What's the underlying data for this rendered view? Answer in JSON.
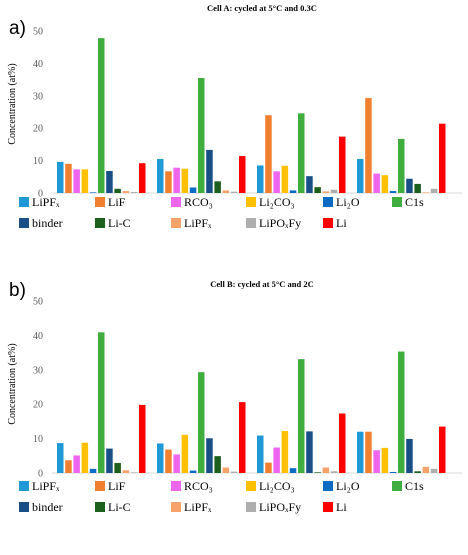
{
  "chart_data": [
    {
      "type": "bar",
      "panel_label": "a)",
      "title": "Cell A: cycled at 5°C and 0.3C",
      "ylabel": "Concentration (at%)",
      "ylim": [
        0,
        50
      ],
      "yticks": [
        0,
        10,
        20,
        30,
        40,
        50
      ],
      "grid": false,
      "legend_position": "bottom",
      "groups": 4,
      "series": [
        {
          "name": "LiPFₓ",
          "color": "#1f9ad6",
          "values": [
            9.6,
            10.5,
            8.5,
            10.5
          ]
        },
        {
          "name": "LiF",
          "color": "#f07f2f",
          "values": [
            9.0,
            6.7,
            24.0,
            29.3
          ]
        },
        {
          "name": "RCO₃",
          "color": "#ee65ee",
          "values": [
            7.3,
            7.8,
            6.7,
            6.0
          ]
        },
        {
          "name": "Li₂CO₃",
          "color": "#ffc000",
          "values": [
            7.3,
            7.5,
            8.4,
            5.5
          ]
        },
        {
          "name": "Li₂O",
          "color": "#0b6cc4",
          "values": [
            0.2,
            1.7,
            0.8,
            0.6
          ]
        },
        {
          "name": "C1s",
          "color": "#3fae3f",
          "values": [
            47.8,
            35.5,
            24.6,
            16.7
          ]
        },
        {
          "name": "binder",
          "color": "#174f86",
          "values": [
            6.8,
            13.3,
            5.2,
            4.4
          ]
        },
        {
          "name": "Li-C",
          "color": "#1d5f1d",
          "values": [
            1.3,
            3.6,
            1.8,
            2.8
          ]
        },
        {
          "name": "LiPFₓ",
          "color": "#f5a36a",
          "values": [
            0.6,
            0.8,
            0.5,
            0.2
          ]
        },
        {
          "name": "LiPOₓFy",
          "color": "#aeaeae",
          "values": [
            0.3,
            0.4,
            1.0,
            1.3
          ]
        },
        {
          "name": "Li",
          "color": "#ff0000",
          "values": [
            9.2,
            11.4,
            17.4,
            21.4
          ]
        }
      ]
    },
    {
      "type": "bar",
      "panel_label": "b)",
      "title": "Cell B: cycled at 5°C and 2C",
      "ylabel": "Concentration (at%)",
      "ylim": [
        0,
        50
      ],
      "yticks": [
        0,
        10,
        20,
        30,
        40,
        50
      ],
      "grid": false,
      "legend_position": "bottom",
      "groups": 4,
      "series": [
        {
          "name": "LiPFₓ",
          "color": "#1f9ad6",
          "values": [
            8.7,
            8.6,
            10.9,
            12.0
          ]
        },
        {
          "name": "LiF",
          "color": "#f07f2f",
          "values": [
            3.7,
            6.8,
            3.0,
            12.0
          ]
        },
        {
          "name": "RCO₃",
          "color": "#ee65ee",
          "values": [
            5.1,
            5.4,
            7.4,
            6.6
          ]
        },
        {
          "name": "Li₂CO₃",
          "color": "#ffc000",
          "values": [
            8.8,
            11.1,
            12.2,
            7.3
          ]
        },
        {
          "name": "Li₂O",
          "color": "#0b6cc4",
          "values": [
            1.2,
            0.7,
            1.4,
            0.3
          ]
        },
        {
          "name": "C1s",
          "color": "#3fae3f",
          "values": [
            40.9,
            29.3,
            33.1,
            35.3
          ]
        },
        {
          "name": "binder",
          "color": "#174f86",
          "values": [
            7.1,
            10.1,
            12.1,
            9.9
          ]
        },
        {
          "name": "Li-C",
          "color": "#1d5f1d",
          "values": [
            2.9,
            4.9,
            0.2,
            0.5
          ]
        },
        {
          "name": "LiPFₓ",
          "color": "#f5a36a",
          "values": [
            0.8,
            1.6,
            1.6,
            1.8
          ]
        },
        {
          "name": "LiPOₓFy",
          "color": "#aeaeae",
          "values": [
            0.2,
            0.4,
            0.5,
            1.2
          ]
        },
        {
          "name": "Li",
          "color": "#ff0000",
          "values": [
            19.8,
            20.6,
            17.3,
            13.5
          ]
        }
      ]
    }
  ]
}
